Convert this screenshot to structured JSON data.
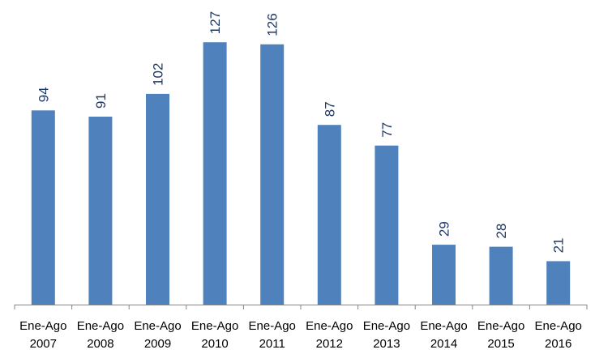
{
  "chart_data": {
    "type": "bar",
    "categories": [
      [
        "Ene-Ago",
        "2007"
      ],
      [
        "Ene-Ago",
        "2008"
      ],
      [
        "Ene-Ago",
        "2009"
      ],
      [
        "Ene-Ago",
        "2010"
      ],
      [
        "Ene-Ago",
        "2011"
      ],
      [
        "Ene-Ago",
        "2012"
      ],
      [
        "Ene-Ago",
        "2013"
      ],
      [
        "Ene-Ago",
        "2014"
      ],
      [
        "Ene-Ago",
        "2015"
      ],
      [
        "Ene-Ago",
        "2016"
      ]
    ],
    "values": [
      94,
      91,
      102,
      127,
      126,
      87,
      77,
      29,
      28,
      21
    ],
    "title": "",
    "xlabel": "",
    "ylabel": "",
    "ylim": [
      0,
      134
    ],
    "grid": false,
    "legend": "none",
    "data_labels": true,
    "data_label_orientation": "vertical",
    "colors": {
      "bar": "#4F81BD",
      "label": "#1F3864",
      "axis": "#868686",
      "tick_text": "#000000"
    }
  }
}
